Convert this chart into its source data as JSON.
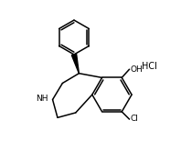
{
  "background": "#ffffff",
  "line_color": "#000000",
  "line_width": 1.1,
  "font_size": 6.5,
  "HCl_label": "HCl",
  "OH_label": "OH",
  "Cl_label": "Cl",
  "NH_label": "NH",
  "xlim": [
    -0.5,
    9.5
  ],
  "ylim": [
    0.5,
    9.5
  ]
}
